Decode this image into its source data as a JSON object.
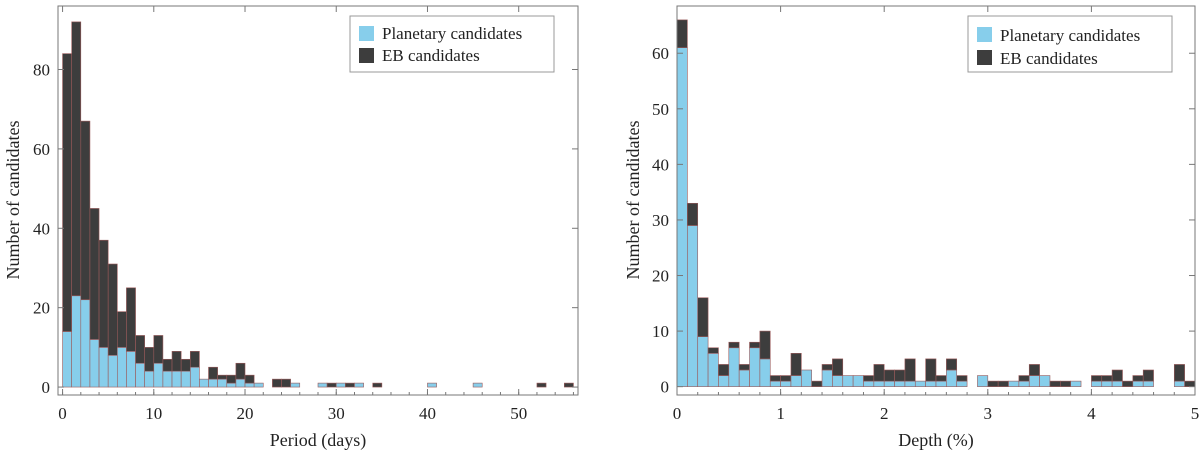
{
  "colors": {
    "planetary": "#87ceeb",
    "eb": "#3d3d3d"
  },
  "chart_data": [
    {
      "type": "bar",
      "stacked": true,
      "title": "",
      "xlabel": "Period (days)",
      "ylabel": "Number of candidates",
      "xlim": [
        -0.5,
        56.5
      ],
      "ylim": [
        -2,
        96
      ],
      "xticks": [
        0,
        10,
        20,
        30,
        40,
        50
      ],
      "yticks": [
        0,
        20,
        40,
        60,
        80
      ],
      "bin_width": 1,
      "bin_start": 0,
      "legend_position": "top-right",
      "grid": false,
      "series": [
        {
          "name": "Planetary candidates",
          "values": [
            14,
            23,
            22,
            12,
            10,
            8,
            10,
            9,
            6,
            4,
            6,
            4,
            4,
            4,
            5,
            2,
            2,
            2,
            1,
            2,
            1,
            1,
            0,
            0,
            0,
            1,
            0,
            0,
            1,
            0,
            1,
            0,
            1,
            0,
            0,
            0,
            0,
            0,
            0,
            0,
            1,
            0,
            0,
            0,
            0,
            1,
            0,
            0,
            0,
            0,
            0,
            0,
            0,
            0,
            0,
            0
          ]
        },
        {
          "name": "EB candidates",
          "values": [
            70,
            69,
            45,
            33,
            27,
            23,
            9,
            16,
            7,
            6,
            7,
            3,
            5,
            3,
            4,
            0,
            3,
            1,
            2,
            4,
            2,
            0,
            0,
            2,
            2,
            0,
            0,
            0,
            0,
            1,
            0,
            1,
            0,
            0,
            1,
            0,
            0,
            0,
            0,
            0,
            0,
            0,
            0,
            0,
            0,
            0,
            0,
            0,
            0,
            0,
            0,
            0,
            1,
            0,
            0,
            1
          ]
        }
      ]
    },
    {
      "type": "bar",
      "stacked": true,
      "title": "",
      "xlabel": "Depth (%)",
      "ylabel": "Number of candidates",
      "xlim": [
        0,
        5
      ],
      "ylim": [
        -1.5,
        68.5
      ],
      "xticks": [
        0,
        1,
        2,
        3,
        4,
        5
      ],
      "yticks": [
        0,
        10,
        20,
        30,
        40,
        50,
        60
      ],
      "bin_width": 0.1,
      "bin_start": 0,
      "legend_position": "top-right",
      "grid": false,
      "series": [
        {
          "name": "Planetary candidates",
          "values": [
            61,
            29,
            9,
            6,
            2,
            7,
            3,
            7,
            5,
            1,
            1,
            2,
            3,
            0,
            3,
            2,
            2,
            2,
            1,
            1,
            1,
            1,
            1,
            1,
            1,
            1,
            3,
            1,
            0,
            2,
            0,
            0,
            1,
            1,
            2,
            2,
            0,
            0,
            1,
            0,
            1,
            1,
            1,
            0,
            1,
            1,
            0,
            0,
            1,
            0
          ]
        },
        {
          "name": "EB candidates",
          "values": [
            5,
            4,
            7,
            1,
            2,
            1,
            1,
            1,
            5,
            1,
            1,
            4,
            0,
            1,
            1,
            3,
            0,
            0,
            1,
            3,
            2,
            2,
            4,
            0,
            4,
            1,
            2,
            1,
            0,
            0,
            1,
            1,
            0,
            1,
            2,
            0,
            1,
            1,
            0,
            0,
            1,
            1,
            2,
            1,
            1,
            2,
            0,
            0,
            3,
            1
          ]
        }
      ]
    }
  ]
}
